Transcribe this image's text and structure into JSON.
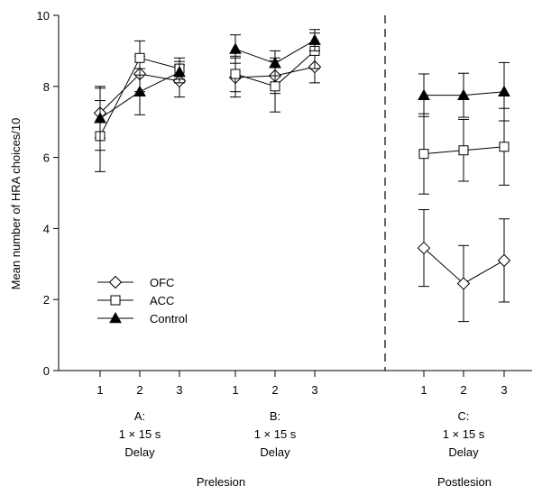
{
  "chart_data": {
    "type": "line",
    "title": "",
    "ylabel": "Mean number of HRA choices/10",
    "ylim": [
      0,
      10
    ],
    "yticks": [
      0,
      2,
      4,
      6,
      8,
      10
    ],
    "xtick_labels": [
      "1",
      "2",
      "3"
    ],
    "grid": false,
    "legend_position": "left-lower",
    "groups": [
      {
        "id": "A",
        "lines": [
          "A:",
          "1 × 15 s",
          "Delay"
        ]
      },
      {
        "id": "B",
        "lines": [
          "B:",
          "1 × 15 s",
          "Delay"
        ]
      },
      {
        "id": "C",
        "lines": [
          "C:",
          "1 × 15 s",
          "Delay"
        ]
      }
    ],
    "phases": [
      {
        "label": "Prelesion",
        "groups": [
          "A",
          "B"
        ]
      },
      {
        "label": "Postlesion",
        "groups": [
          "C"
        ]
      }
    ],
    "series": [
      {
        "name": "OFC",
        "marker": "diamond-open",
        "groups": {
          "A": {
            "values": [
              7.25,
              8.35,
              8.15
            ],
            "errors": [
              0.7,
              0.5,
              0.45
            ]
          },
          "B": {
            "values": [
              8.25,
              8.3,
              8.55
            ],
            "errors": [
              0.55,
              0.5,
              0.45
            ]
          },
          "C": {
            "values": [
              3.45,
              2.45,
              3.1
            ],
            "errors": [
              1.08,
              1.07,
              1.17
            ]
          }
        }
      },
      {
        "name": "ACC",
        "marker": "square-open",
        "groups": {
          "A": {
            "values": [
              6.6,
              8.8,
              8.5
            ],
            "errors": [
              1.0,
              0.48,
              0.3
            ]
          },
          "B": {
            "values": [
              8.35,
              8.0,
              9.0
            ],
            "errors": [
              0.5,
              0.72,
              0.5
            ]
          },
          "C": {
            "values": [
              6.1,
              6.2,
              6.3
            ],
            "errors": [
              1.13,
              0.87,
              1.08
            ]
          }
        }
      },
      {
        "name": "Control",
        "marker": "triangle-filled",
        "groups": {
          "A": {
            "values": [
              7.1,
              7.85,
              8.4
            ],
            "errors": [
              0.9,
              0.65,
              0.3
            ]
          },
          "B": {
            "values": [
              9.05,
              8.65,
              9.3
            ],
            "errors": [
              0.4,
              0.35,
              0.3
            ]
          },
          "C": {
            "values": [
              7.75,
              7.75,
              7.85
            ],
            "errors": [
              0.6,
              0.62,
              0.82
            ]
          }
        }
      }
    ]
  }
}
